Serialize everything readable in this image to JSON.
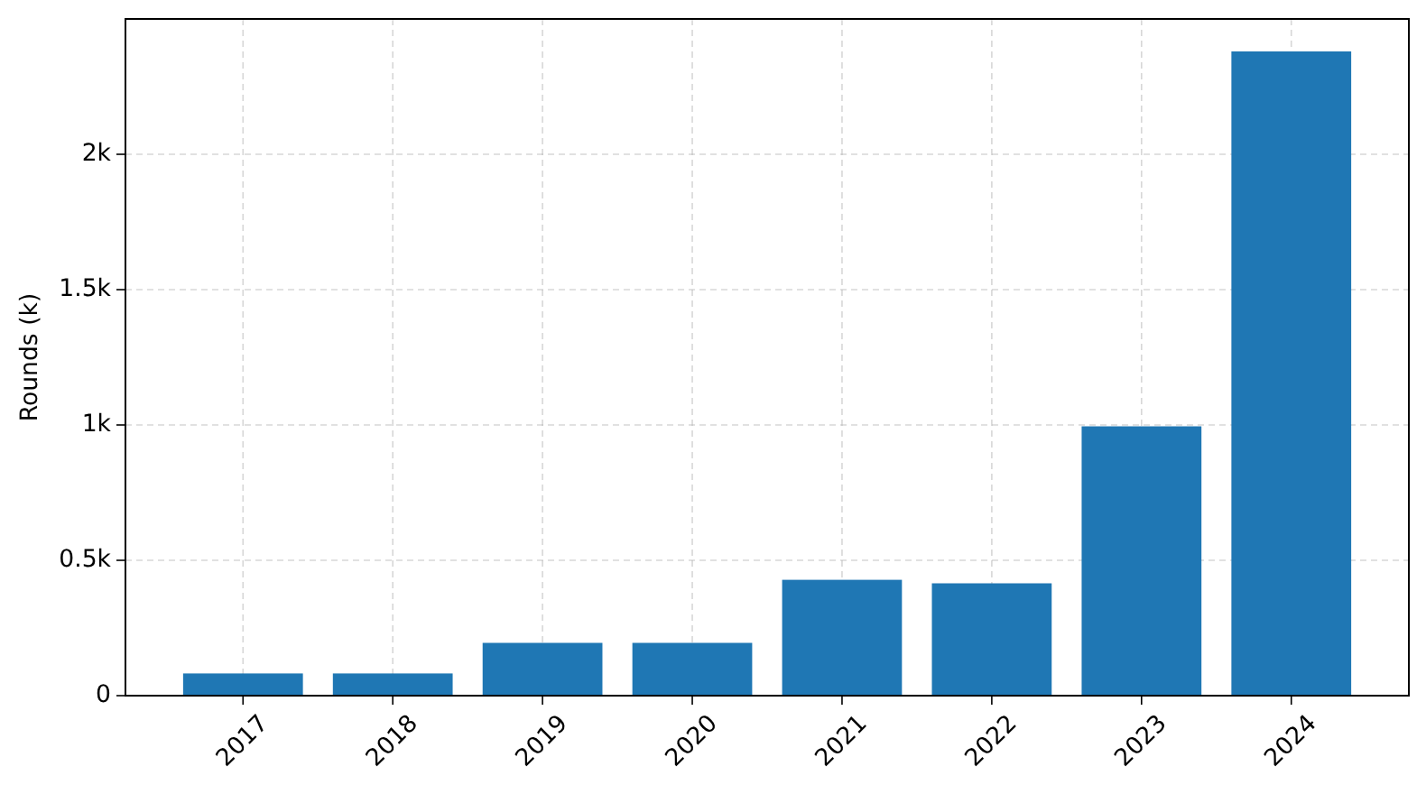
{
  "chart_data": {
    "type": "bar",
    "ylabel": "Rounds (k)",
    "categories": [
      "2017",
      "2018",
      "2019",
      "2020",
      "2021",
      "2022",
      "2023",
      "2024"
    ],
    "values": [
      82,
      82,
      195,
      195,
      428,
      415,
      995,
      2380
    ],
    "color": "#1f77b4",
    "ylim": [
      0,
      2500
    ],
    "yticks": [
      0,
      {
        "value": 500,
        "label": "0.5k"
      },
      {
        "value": 1000,
        "label": "1k"
      },
      {
        "value": 1500,
        "label": "1.5k"
      },
      {
        "value": 2000,
        "label": "2k"
      }
    ],
    "grid": true
  }
}
